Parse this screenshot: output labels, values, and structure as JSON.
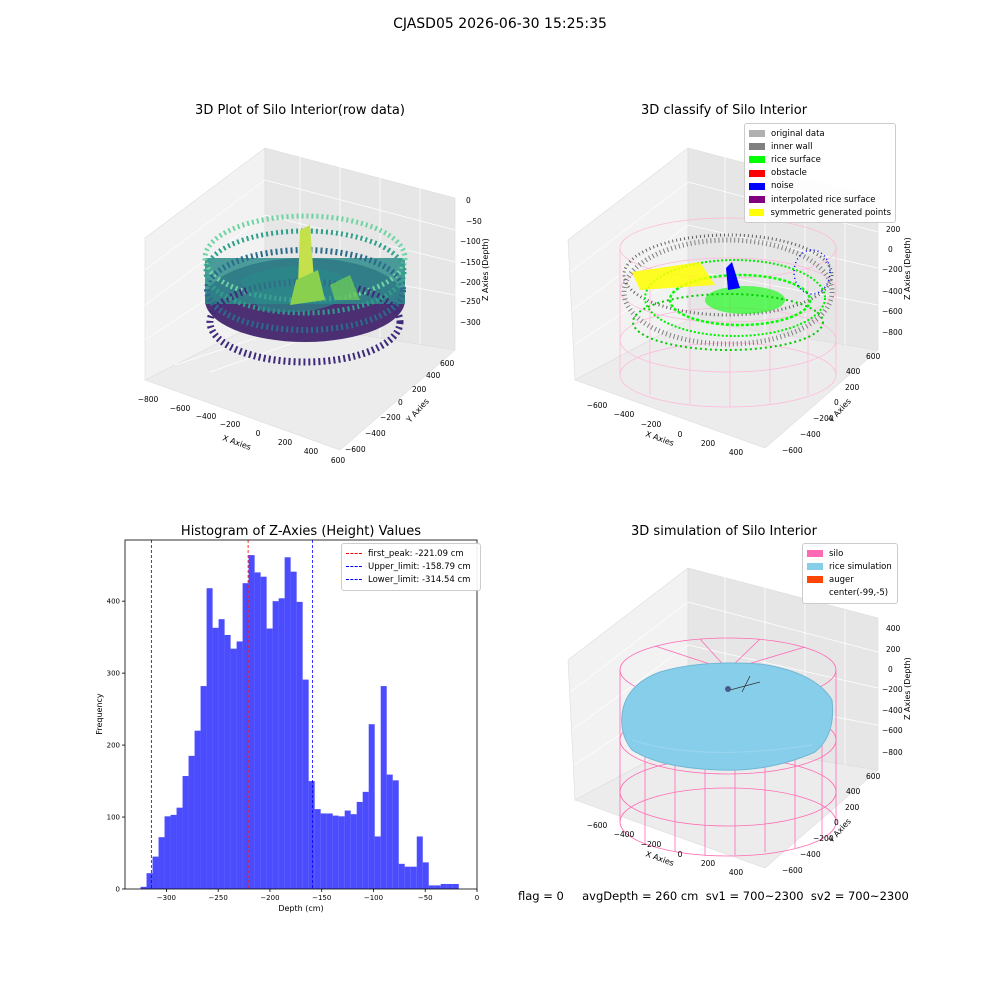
{
  "figure": {
    "suptitle": "CJASD05 2026-06-30 15:25:35",
    "footer": "flag = 0     avgDepth = 260 cm  sv1 = 700~2300  sv2 = 700~2300"
  },
  "panels": {
    "raw": {
      "title": "3D Plot of Silo Interior(row data)",
      "xlabel": "X Axies",
      "ylabel": "Y Axies",
      "zlabel": "Z Axies (Depth)",
      "xticks": [
        "−800",
        "−600",
        "−400",
        "−200",
        "0",
        "200",
        "400",
        "600"
      ],
      "yticks": [
        "−600",
        "−400",
        "−200",
        "0",
        "200",
        "400",
        "600"
      ],
      "zticks": [
        "0",
        "−50",
        "−100",
        "−150",
        "−200",
        "−250",
        "−300"
      ]
    },
    "classify": {
      "title": "3D classify of Silo Interior",
      "xlabel": "X Axies",
      "ylabel": "Y Axies",
      "zlabel": "Z Axies (Depth)",
      "xticks": [
        "−600",
        "−400",
        "−200",
        "0",
        "200",
        "400"
      ],
      "yticks": [
        "−600",
        "−400",
        "−200",
        "0",
        "200",
        "400",
        "600"
      ],
      "zticks": [
        "200",
        "0",
        "−200",
        "−400",
        "−600",
        "−800"
      ],
      "legend": [
        {
          "label": "original data",
          "color": "#b0b0b0"
        },
        {
          "label": "inner wall",
          "color": "#808080"
        },
        {
          "label": "rice surface",
          "color": "#00ff00"
        },
        {
          "label": "obstacle",
          "color": "#ff0000"
        },
        {
          "label": "noise",
          "color": "#0000ff"
        },
        {
          "label": "interpolated rice surface",
          "color": "#800080"
        },
        {
          "label": "symmetric generated points",
          "color": "#ffff00"
        }
      ]
    },
    "simulation": {
      "title": "3D simulation of Silo Interior",
      "xlabel": "X Axies",
      "ylabel": "Y Axies",
      "zlabel": "Z Axies (Depth)",
      "xticks": [
        "−600",
        "−400",
        "−200",
        "0",
        "200",
        "400"
      ],
      "yticks": [
        "−600",
        "−400",
        "−200",
        "0",
        "200",
        "400",
        "600"
      ],
      "zticks": [
        "400",
        "200",
        "0",
        "−200",
        "−400",
        "−600",
        "−800"
      ],
      "legend": [
        {
          "label": "silo",
          "color": "#ff69b4"
        },
        {
          "label": "rice simulation",
          "color": "#87ceeb"
        },
        {
          "label": "auger",
          "color": "#ff4500"
        },
        {
          "label": "center(-99,-5)",
          "color": ""
        }
      ]
    }
  },
  "chart_data": {
    "type": "bar",
    "title": "Histogram of Z-Axies (Height) Values",
    "xlabel": "Depth (cm)",
    "ylabel": "Frequency",
    "xlim": [
      -340,
      0
    ],
    "ylim": [
      0,
      485
    ],
    "xticks": [
      -300,
      -250,
      -200,
      -150,
      -100,
      -50,
      0
    ],
    "yticks": [
      0,
      100,
      200,
      300,
      400
    ],
    "bar_color": "#0000ff",
    "bin_width": 5.8,
    "bins": [
      {
        "x": -325.0,
        "v": 3
      },
      {
        "x": -319.2,
        "v": 22
      },
      {
        "x": -313.4,
        "v": 45
      },
      {
        "x": -307.6,
        "v": 72
      },
      {
        "x": -301.8,
        "v": 101
      },
      {
        "x": -296.0,
        "v": 103
      },
      {
        "x": -290.2,
        "v": 113
      },
      {
        "x": -284.4,
        "v": 157
      },
      {
        "x": -278.6,
        "v": 185
      },
      {
        "x": -272.8,
        "v": 220
      },
      {
        "x": -267.0,
        "v": 282
      },
      {
        "x": -261.2,
        "v": 418
      },
      {
        "x": -255.4,
        "v": 363
      },
      {
        "x": -249.6,
        "v": 375
      },
      {
        "x": -243.8,
        "v": 353
      },
      {
        "x": -238.0,
        "v": 334
      },
      {
        "x": -232.2,
        "v": 344
      },
      {
        "x": -226.4,
        "v": 425
      },
      {
        "x": -220.6,
        "v": 464
      },
      {
        "x": -214.8,
        "v": 440
      },
      {
        "x": -209.0,
        "v": 434
      },
      {
        "x": -203.2,
        "v": 362
      },
      {
        "x": -197.4,
        "v": 400
      },
      {
        "x": -191.6,
        "v": 404
      },
      {
        "x": -185.8,
        "v": 461
      },
      {
        "x": -180.0,
        "v": 441
      },
      {
        "x": -174.2,
        "v": 399
      },
      {
        "x": -168.4,
        "v": 291
      },
      {
        "x": -162.6,
        "v": 150
      },
      {
        "x": -156.8,
        "v": 111
      },
      {
        "x": -151.0,
        "v": 105
      },
      {
        "x": -145.2,
        "v": 105
      },
      {
        "x": -139.4,
        "v": 102
      },
      {
        "x": -133.6,
        "v": 101
      },
      {
        "x": -127.8,
        "v": 109
      },
      {
        "x": -122.0,
        "v": 104
      },
      {
        "x": -116.2,
        "v": 121
      },
      {
        "x": -110.4,
        "v": 135
      },
      {
        "x": -104.6,
        "v": 229
      },
      {
        "x": -98.8,
        "v": 73
      },
      {
        "x": -93.0,
        "v": 282
      },
      {
        "x": -87.2,
        "v": 159
      },
      {
        "x": -81.4,
        "v": 151
      },
      {
        "x": -75.6,
        "v": 35
      },
      {
        "x": -69.8,
        "v": 31
      },
      {
        "x": -64.0,
        "v": 31
      },
      {
        "x": -58.2,
        "v": 73
      },
      {
        "x": -52.4,
        "v": 37
      },
      {
        "x": -46.6,
        "v": 5
      },
      {
        "x": -40.8,
        "v": 5
      },
      {
        "x": -35.0,
        "v": 7
      },
      {
        "x": -29.2,
        "v": 7
      },
      {
        "x": -23.4,
        "v": 7
      }
    ],
    "lines": [
      {
        "label": "first_peak: -221.09 cm",
        "x": -221.09,
        "color": "#ff0000"
      },
      {
        "label": "Upper_limit: -158.79 cm",
        "x": -158.79,
        "color": "#0000ff"
      },
      {
        "label": "Lower_limit: -314.54 cm",
        "x": -314.54,
        "color": "#0000ff"
      }
    ],
    "legend_position": "upper right"
  }
}
